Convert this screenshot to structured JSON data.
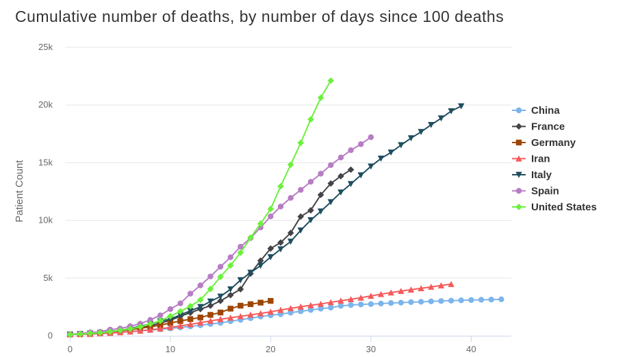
{
  "chart_data": {
    "type": "line",
    "title": "Cumulative number of deaths, by number of days since 100 deaths",
    "xlabel": "",
    "ylabel": "Patient Count",
    "xlim": [
      -0.5,
      44
    ],
    "ylim": [
      0,
      25000
    ],
    "x_ticks": [
      "0",
      "10",
      "20",
      "30",
      "40"
    ],
    "x_tick_values": [
      0,
      10,
      20,
      30,
      40
    ],
    "y_ticks": [
      "0",
      "5k",
      "10k",
      "15k",
      "20k",
      "25k"
    ],
    "y_tick_values": [
      0,
      5000,
      10000,
      15000,
      20000,
      25000
    ],
    "grid": "horizontal",
    "legend_position": "right",
    "series": [
      {
        "name": "China",
        "color": "#7cb5ec",
        "marker": "circle",
        "values": [
          100,
          132,
          170,
          213,
          259,
          304,
          361,
          425,
          490,
          563,
          637,
          722,
          811,
          908,
          1016,
          1113,
          1259,
          1380,
          1523,
          1665,
          1770,
          1868,
          2004,
          2118,
          2236,
          2345,
          2442,
          2592,
          2663,
          2715,
          2744,
          2788,
          2835,
          2870,
          2912,
          2943,
          2981,
          3012,
          3042,
          3070,
          3097,
          3119,
          3136,
          3158
        ]
      },
      {
        "name": "France",
        "color": "#434348",
        "marker": "diamond",
        "values": [
          127,
          148,
          175,
          244,
          372,
          450,
          562,
          674,
          860,
          1100,
          1331,
          1696,
          1995,
          2314,
          2606,
          3024,
          3523,
          4032,
          5387,
          6507,
          7560,
          8078,
          8911,
          10328,
          10869,
          12210,
          13197,
          13832,
          14393
        ]
      },
      {
        "name": "Germany",
        "color": "#9e4500",
        "marker": "square",
        "values": [
          123,
          157,
          206,
          267,
          342,
          433,
          533,
          645,
          775,
          920,
          1107,
          1275,
          1444,
          1584,
          1810,
          2016,
          2349,
          2607,
          2736,
          2871,
          3022
        ]
      },
      {
        "name": "Iran",
        "color": "#f45b5b",
        "marker": "triangle",
        "values": [
          107,
          124,
          145,
          194,
          237,
          291,
          354,
          429,
          514,
          611,
          724,
          853,
          988,
          1135,
          1284,
          1433,
          1556,
          1685,
          1812,
          1934,
          2077,
          2234,
          2378,
          2517,
          2640,
          2757,
          2898,
          3036,
          3160,
          3294,
          3452,
          3603,
          3739,
          3872,
          3993,
          4110,
          4232,
          4357,
          4474
        ]
      },
      {
        "name": "Italy",
        "color": "#1f4e5f",
        "marker": "triangle-down",
        "values": [
          107,
          148,
          197,
          233,
          366,
          463,
          631,
          827,
          1016,
          1266,
          1441,
          1809,
          2158,
          2503,
          2978,
          3405,
          4032,
          4825,
          5476,
          6077,
          6820,
          7503,
          8165,
          9134,
          10023,
          10779,
          11591,
          12428,
          13155,
          13915,
          14681,
          15362,
          15887,
          16523,
          17127,
          17669,
          18279,
          18849,
          19468,
          19899
        ]
      },
      {
        "name": "Spain",
        "color": "#b77dc4",
        "marker": "circle",
        "values": [
          136,
          195,
          289,
          342,
          533,
          623,
          830,
          1043,
          1375,
          1772,
          2311,
          2808,
          3647,
          4365,
          5138,
          5982,
          6803,
          7716,
          8464,
          9387,
          10348,
          11198,
          11947,
          12641,
          13341,
          14045,
          14792,
          15447,
          16081,
          16606,
          17209
        ]
      },
      {
        "name": "United States",
        "color": "#6cf03c",
        "marker": "diamond",
        "values": [
          107,
          150,
          205,
          259,
          350,
          471,
          596,
          772,
          1027,
          1295,
          1695,
          2112,
          2567,
          3112,
          4059,
          5110,
          6094,
          7197,
          8501,
          9710,
          10989,
          12954,
          14828,
          16714,
          18747,
          20626,
          22108
        ]
      }
    ]
  }
}
